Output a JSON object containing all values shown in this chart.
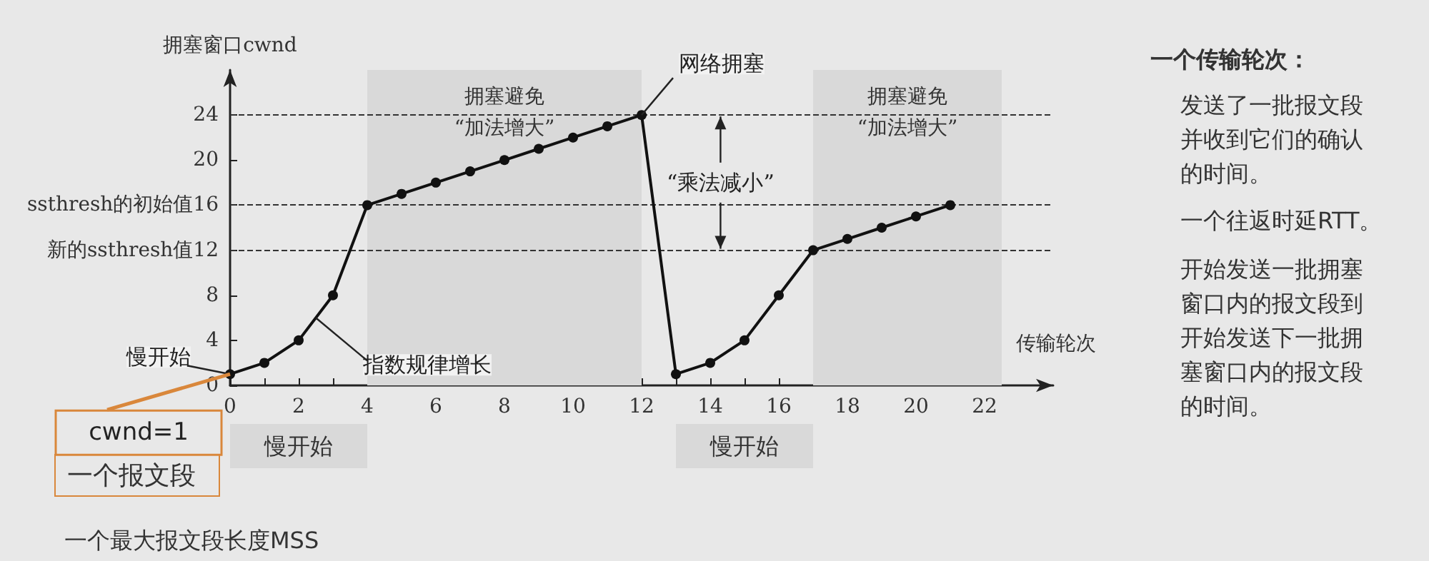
{
  "chart_data": {
    "type": "line",
    "xlabel": "传输轮次",
    "ylabel": "拥塞窗口cwnd",
    "x": [
      0,
      1,
      2,
      3,
      4,
      5,
      6,
      7,
      8,
      9,
      10,
      11,
      12,
      13,
      14,
      15,
      16,
      17,
      18,
      19,
      20,
      21
    ],
    "series": [
      {
        "color": "#111111",
        "values": [
          1,
          2,
          4,
          8,
          16,
          17,
          18,
          19,
          20,
          21,
          22,
          23,
          24,
          1,
          2,
          4,
          8,
          12,
          13,
          14,
          15,
          16
        ]
      }
    ],
    "xlim": [
      0,
      24
    ],
    "xticks": [
      0,
      {
        "value": 1,
        "label": null
      },
      2,
      {
        "value": 3,
        "label": null
      },
      4,
      {
        "value": 5,
        "label": null
      },
      6,
      {
        "value": 7,
        "label": null
      },
      8,
      {
        "value": 9,
        "label": null
      },
      10,
      {
        "value": 11,
        "label": null
      },
      12,
      {
        "value": 13,
        "label": null
      },
      14,
      {
        "value": 15,
        "label": null
      },
      16,
      {
        "value": 17,
        "label": null
      },
      18,
      {
        "value": 19,
        "label": null
      },
      20,
      {
        "value": 21,
        "label": null
      },
      22
    ],
    "ylim": [
      0,
      28
    ],
    "yticks": [
      0,
      4,
      8,
      {
        "value": 12,
        "label": "新的ssthresh值12"
      },
      {
        "value": 16,
        "label": "ssthresh的初始值16"
      },
      20,
      24
    ],
    "ref_lines": [
      {
        "axis": "y",
        "value": 24,
        "line_style": "dashed",
        "color": "#333333"
      },
      {
        "axis": "y",
        "value": 16,
        "line_style": "dashed",
        "color": "#333333"
      },
      {
        "axis": "y",
        "value": 12,
        "line_style": "dashed",
        "color": "#333333"
      }
    ],
    "bands": [
      {
        "axis": "x",
        "from": 4,
        "to": 12,
        "label": "拥塞避免\n“加法增大”",
        "color": "#d9d9d9"
      },
      {
        "axis": "x",
        "from": 17,
        "to": 22.5,
        "label": "拥塞避免\n“加法增大”",
        "color": "#d9d9d9"
      }
    ],
    "annotations": [
      {
        "text": "网络拥塞",
        "x": 12,
        "y": 24
      },
      {
        "text": "指数规律增长",
        "x": 2.5,
        "y": 6
      },
      {
        "text": "慢开始",
        "x": 0,
        "y": 1
      },
      {
        "text": "“乘法减小”",
        "x": 14.3,
        "y": 24
      },
      {
        "text": "cwnd=1",
        "x": 0,
        "y": 1
      },
      "慢开始",
      "慢开始",
      "一个报文段",
      "一个最大报文段长度MSS",
      "一个传输轮次：",
      "发送了一批报文段并收到它们的确认的时间。",
      "一个往返时延RTT。",
      "开始发送一批拥塞窗口内的报文段到开始发送下一批拥塞窗口内的报文段的时间。"
    ],
    "grid": false,
    "marker": "circle",
    "line_style": "solid"
  }
}
